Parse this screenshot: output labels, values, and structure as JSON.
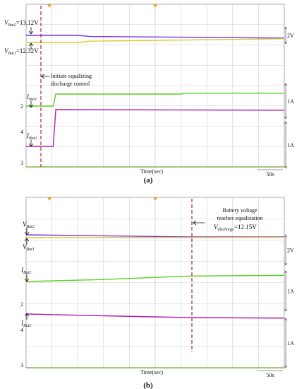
{
  "chart_data": [
    {
      "type": "line",
      "panel_label": "(a)",
      "xlabel": "Time(sec)",
      "time_scale": "50s",
      "voltage_scale": "2V",
      "current_scale": "1A",
      "annotation": [
        "Initiate equalizing",
        "discharge control"
      ],
      "labels": {
        "vbat2": {
          "main": "V",
          "sub": "Bat2",
          "value": "=13.12V"
        },
        "vbat1": {
          "main": "V",
          "sub": "Bat1",
          "value": "=12.32V"
        },
        "ibat1": {
          "main": "I",
          "sub": "Bat1"
        },
        "ibat2": {
          "main": "I",
          "sub": "Bat2"
        }
      },
      "channel_markers": [
        "2",
        "4",
        "3"
      ],
      "series": [
        {
          "name": "VBat2",
          "color": "#7b2ff7",
          "values": [
            [
              0,
              13.12
            ],
            [
              2,
              13.12
            ],
            [
              2.5,
              13.05
            ],
            [
              10,
              12.95
            ]
          ]
        },
        {
          "name": "VBat1",
          "color": "#d8cd2a",
          "values": [
            [
              0,
              12.32
            ],
            [
              2,
              12.32
            ],
            [
              2.5,
              12.4
            ],
            [
              10,
              12.55
            ]
          ]
        },
        {
          "name": "IBat1",
          "color": "#5ccf21",
          "values": [
            [
              0,
              0
            ],
            [
              1.05,
              0
            ],
            [
              1.15,
              1.02
            ],
            [
              6,
              1.02
            ],
            [
              6.2,
              1.05
            ],
            [
              10,
              1.05
            ]
          ]
        },
        {
          "name": "IBat2",
          "color": "#b21fb0",
          "values": [
            [
              0,
              0
            ],
            [
              1.05,
              0
            ],
            [
              1.15,
              -1.02
            ],
            [
              10,
              -1.04
            ]
          ]
        }
      ]
    },
    {
      "type": "line",
      "panel_label": "(b)",
      "xlabel": "Time(sec)",
      "time_scale": "50s",
      "voltage_scale": "2V",
      "current_scale": "1A",
      "annotation": [
        "Battery voltage",
        "reaches equalization"
      ],
      "annotation_v": {
        "main": "V",
        "sub": "discharge",
        "value": "=12.15V"
      },
      "labels": {
        "vbat2": {
          "main": "V",
          "sub": "Bat2"
        },
        "vbat1": {
          "main": "V",
          "sub": "Bat1"
        },
        "ibat1": {
          "main": "I",
          "sub": "Bat1"
        },
        "ibat2": {
          "main": "I",
          "sub": "Bat2"
        }
      },
      "channel_markers": [
        "2",
        "4",
        "3"
      ],
      "series": [
        {
          "name": "VBat2",
          "color": "#7b2ff7",
          "values": [
            [
              0,
              0.3
            ],
            [
              6.3,
              0.15
            ],
            [
              10,
              0.15
            ]
          ]
        },
        {
          "name": "VBat1",
          "color": "#d8cd2a",
          "values": [
            [
              0,
              0
            ],
            [
              10,
              0.04
            ]
          ]
        },
        {
          "name": "IBat1",
          "color": "#5ccf21",
          "values": [
            [
              0,
              1.0
            ],
            [
              3,
              1.08
            ],
            [
              6.3,
              1.22
            ],
            [
              10,
              1.25
            ]
          ]
        },
        {
          "name": "IBat2",
          "color": "#b21fb0",
          "values": [
            [
              0,
              1.05
            ],
            [
              3,
              0.95
            ],
            [
              6.3,
              0.85
            ],
            [
              10,
              0.82
            ]
          ]
        }
      ]
    }
  ]
}
